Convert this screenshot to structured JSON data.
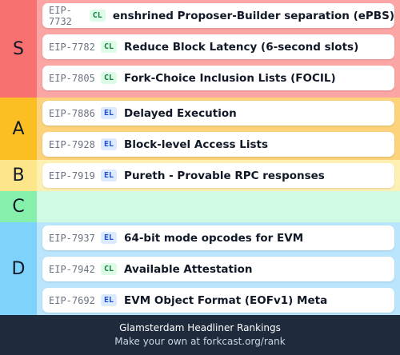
{
  "tiers": [
    {
      "label": "S",
      "color": "#f87171",
      "body_color": "#fca5a5",
      "items": [
        {
          "eip": "EIP-7732",
          "layer": "CL",
          "title": "enshrined Proposer-Builder separation (ePBS)"
        },
        {
          "eip": "EIP-7782",
          "layer": "CL",
          "title": "Reduce Block Latency (6-second slots)"
        },
        {
          "eip": "EIP-7805",
          "layer": "CL",
          "title": "Fork-Choice Inclusion Lists (FOCIL)"
        }
      ]
    },
    {
      "label": "A",
      "color": "#fbbf24",
      "body_color": "#fcd27a",
      "items": [
        {
          "eip": "EIP-7886",
          "layer": "EL",
          "title": "Delayed Execution"
        },
        {
          "eip": "EIP-7928",
          "layer": "EL",
          "title": "Block-level Access Lists"
        }
      ]
    },
    {
      "label": "B",
      "color": "#fde68a",
      "body_color": "#fef0b3",
      "items": [
        {
          "eip": "EIP-7919",
          "layer": "EL",
          "title": "Pureth - Provable RPC responses"
        }
      ]
    },
    {
      "label": "C",
      "color": "#86efac",
      "body_color": "#d1fae5",
      "items": []
    },
    {
      "label": "D",
      "color": "#7dd3fc",
      "body_color": "#bae6fd",
      "items": [
        {
          "eip": "EIP-7937",
          "layer": "EL",
          "title": "64-bit mode opcodes for EVM"
        },
        {
          "eip": "EIP-7942",
          "layer": "CL",
          "title": "Available Attestation"
        },
        {
          "eip": "EIP-7692",
          "layer": "EL",
          "title": "EVM Object Format (EOFv1) Meta"
        }
      ]
    }
  ],
  "footer": {
    "title": "Glamsterdam Headliner Rankings",
    "subtitle": "Make your own at forkcast.org/rank"
  }
}
